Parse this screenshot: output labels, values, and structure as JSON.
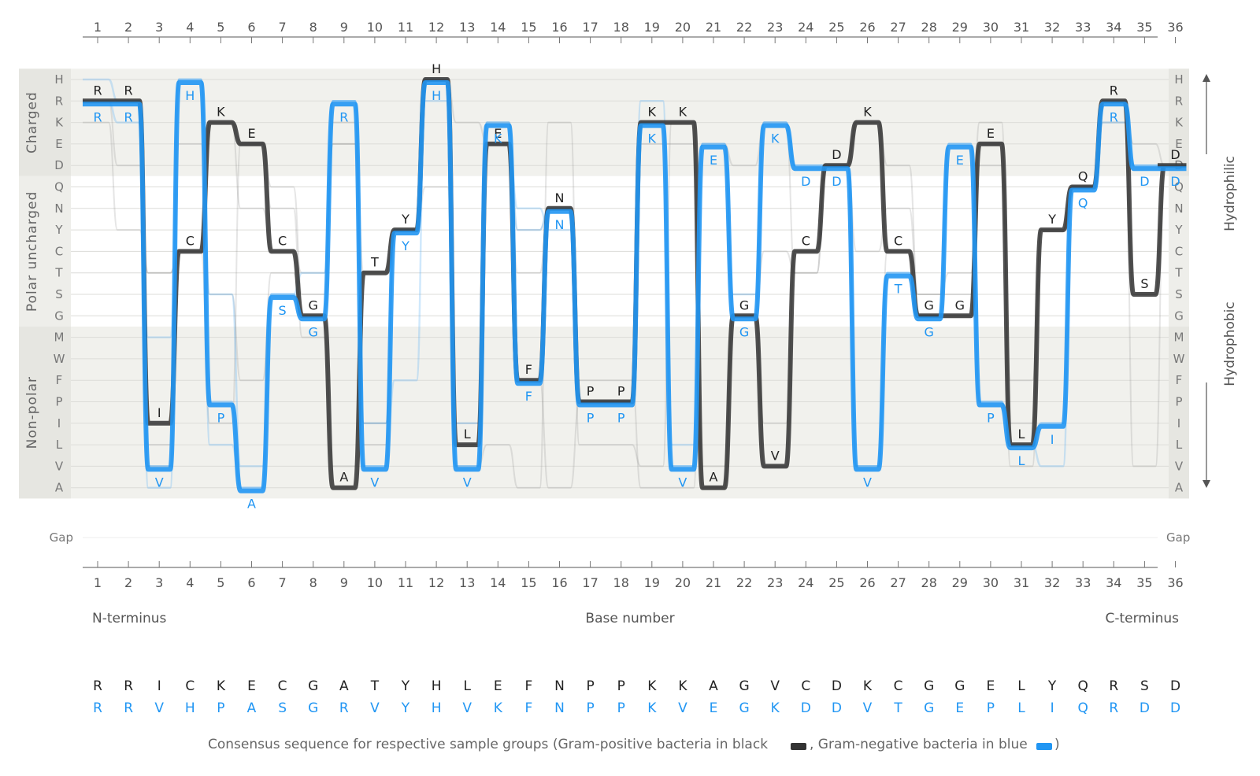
{
  "chart_data": {
    "type": "line",
    "x": [
      1,
      2,
      3,
      4,
      5,
      6,
      7,
      8,
      9,
      10,
      11,
      12,
      13,
      14,
      15,
      16,
      17,
      18,
      19,
      20,
      21,
      22,
      23,
      24,
      25,
      26,
      27,
      28,
      29,
      30,
      31,
      32,
      33,
      34,
      35,
      36
    ],
    "x_ticks": [
      "1",
      "2",
      "3",
      "4",
      "5",
      "6",
      "7",
      "8",
      "9",
      "10",
      "11",
      "12",
      "13",
      "14",
      "15",
      "16",
      "17",
      "18",
      "19",
      "20",
      "21",
      "22",
      "23",
      "24",
      "25",
      "26",
      "27",
      "28",
      "29",
      "30",
      "31",
      "32",
      "33",
      "34",
      "35",
      "36"
    ],
    "y_categories": [
      "H",
      "R",
      "K",
      "E",
      "D",
      "Q",
      "N",
      "Y",
      "C",
      "T",
      "S",
      "G",
      "M",
      "W",
      "F",
      "P",
      "I",
      "L",
      "V",
      "A"
    ],
    "gap_label": "Gap",
    "groups": [
      {
        "label": "Charged",
        "start": "H",
        "end": "D"
      },
      {
        "label": "Polar uncharged",
        "start": "Q",
        "end": "G"
      },
      {
        "label": "Non-polar",
        "start": "M",
        "end": "A"
      }
    ],
    "xlabel": "Base number",
    "x_start_label": "N-terminus",
    "x_end_label": "C-terminus",
    "right_axis": {
      "top": "Hydrophilic",
      "bottom": "Hydrophobic"
    },
    "series": [
      {
        "name": "Gram-positive bacteria",
        "color": "#333333",
        "values": [
          "R",
          "R",
          "I",
          "C",
          "K",
          "E",
          "C",
          "G",
          "A",
          "T",
          "Y",
          "H",
          "L",
          "E",
          "F",
          "N",
          "P",
          "P",
          "K",
          "K",
          "A",
          "G",
          "V",
          "C",
          "D",
          "K",
          "C",
          "G",
          "G",
          "E",
          "L",
          "Y",
          "Q",
          "R",
          "S",
          "D"
        ]
      },
      {
        "name": "Gram-negative bacteria",
        "color": "#2196f3",
        "values": [
          "R",
          "R",
          "V",
          "H",
          "P",
          "A",
          "S",
          "G",
          "R",
          "V",
          "Y",
          "H",
          "V",
          "K",
          "F",
          "N",
          "P",
          "P",
          "K",
          "V",
          "E",
          "G",
          "K",
          "D",
          "D",
          "V",
          "T",
          "G",
          "E",
          "P",
          "L",
          "I",
          "Q",
          "R",
          "D",
          "D"
        ]
      }
    ],
    "background_lines_black": [
      [
        "R",
        "D",
        "T",
        "C",
        "K",
        "E",
        "Q",
        "S",
        "K",
        "T",
        "Y",
        "Q",
        "I",
        "K",
        "T",
        "N",
        "F",
        "F",
        "A",
        "A",
        "E",
        "D",
        "K",
        "T",
        "D",
        "K",
        "D",
        "S",
        "S",
        "D",
        "F",
        "Y",
        "Q",
        "R",
        "V",
        "D"
      ],
      [
        "R",
        "R",
        "L",
        "E",
        "S",
        "F",
        "T",
        "G",
        "E",
        "I",
        "Y",
        "H",
        "K",
        "E",
        "Y",
        "N",
        "P",
        "P",
        "K",
        "K",
        "A",
        "G",
        "C",
        "T",
        "D",
        "K",
        "C",
        "G",
        "G",
        "E",
        "L",
        "Y",
        "Q",
        "R",
        "S",
        "D"
      ],
      [
        "R",
        "R",
        "V",
        "C",
        "I",
        "E",
        "N",
        "M",
        "V",
        "L",
        "Y",
        "H",
        "V",
        "L",
        "A",
        "K",
        "L",
        "L",
        "V",
        "K",
        "V",
        "S",
        "V",
        "C",
        "D",
        "C",
        "N",
        "S",
        "T",
        "K",
        "V",
        "Y",
        "Q",
        "R",
        "E",
        "D"
      ],
      [
        "K",
        "Y",
        "T",
        "C",
        "K",
        "N",
        "C",
        "T",
        "E",
        "I",
        "Y",
        "H",
        "L",
        "E",
        "F",
        "A",
        "P",
        "P",
        "E",
        "E",
        "A",
        "G",
        "I",
        "C",
        "D",
        "V",
        "C",
        "G",
        "G",
        "E",
        "I",
        "Y",
        "Q",
        "K",
        "S",
        "D"
      ],
      [
        "R",
        "R",
        "I",
        "C",
        "K",
        "E",
        "C",
        "G",
        "A",
        "T",
        "Y",
        "H",
        "L",
        "E",
        "F",
        "N",
        "P",
        "P",
        "K",
        "K",
        "A",
        "G",
        "V",
        "C",
        "D",
        "K",
        "C",
        "G",
        "G",
        "E",
        "L",
        "Y",
        "Q",
        "R",
        "S",
        "D"
      ]
    ],
    "background_lines_blue": [
      [
        "R",
        "R",
        "A",
        "H",
        "S",
        "V",
        "S",
        "G",
        "R",
        "V",
        "Y",
        "R",
        "V",
        "E",
        "N",
        "Y",
        "P",
        "P",
        "R",
        "V",
        "E",
        "S",
        "K",
        "D",
        "D",
        "V",
        "T",
        "G",
        "E",
        "P",
        "L",
        "I",
        "Q",
        "R",
        "D",
        "D"
      ],
      [
        "R",
        "K",
        "V",
        "H",
        "P",
        "A",
        "S",
        "T",
        "R",
        "I",
        "Y",
        "H",
        "I",
        "K",
        "F",
        "N",
        "P",
        "P",
        "K",
        "V",
        "E",
        "G",
        "K",
        "D",
        "D",
        "V",
        "T",
        "G",
        "E",
        "P",
        "L",
        "I",
        "Q",
        "R",
        "D",
        "D"
      ],
      [
        "H",
        "R",
        "M",
        "H",
        "L",
        "A",
        "S",
        "G",
        "R",
        "V",
        "F",
        "H",
        "V",
        "K",
        "Y",
        "N",
        "P",
        "P",
        "K",
        "L",
        "E",
        "G",
        "K",
        "D",
        "D",
        "V",
        "T",
        "G",
        "E",
        "P",
        "L",
        "V",
        "Q",
        "K",
        "D",
        "D"
      ],
      [
        "R",
        "R",
        "V",
        "H",
        "P",
        "A",
        "S",
        "G",
        "R",
        "V",
        "Y",
        "H",
        "V",
        "K",
        "F",
        "N",
        "P",
        "P",
        "K",
        "V",
        "E",
        "G",
        "K",
        "D",
        "D",
        "V",
        "T",
        "G",
        "E",
        "P",
        "L",
        "I",
        "Q",
        "R",
        "D",
        "D"
      ]
    ]
  },
  "consensus": {
    "black": [
      "R",
      "R",
      "I",
      "C",
      "K",
      "E",
      "C",
      "G",
      "A",
      "T",
      "Y",
      "H",
      "L",
      "E",
      "F",
      "N",
      "P",
      "P",
      "K",
      "K",
      "A",
      "G",
      "V",
      "C",
      "D",
      "K",
      "C",
      "G",
      "G",
      "E",
      "L",
      "Y",
      "Q",
      "R",
      "S",
      "D"
    ],
    "blue": [
      "R",
      "R",
      "V",
      "H",
      "P",
      "A",
      "S",
      "G",
      "R",
      "V",
      "Y",
      "H",
      "V",
      "K",
      "F",
      "N",
      "P",
      "P",
      "K",
      "V",
      "E",
      "G",
      "K",
      "D",
      "D",
      "V",
      "T",
      "G",
      "E",
      "P",
      "L",
      "I",
      "Q",
      "R",
      "D",
      "D"
    ],
    "caption_prefix": "Consensus sequence for respective sample groups (Gram-positive bacteria in black",
    "caption_middle": ", Gram-negative bacteria in blue",
    "caption_suffix": ")"
  },
  "colors": {
    "black_series": "#333333",
    "blue_series": "#2196f3",
    "band": "#eeeeea",
    "panel": "#f5f5f2",
    "axis": "#777777"
  }
}
